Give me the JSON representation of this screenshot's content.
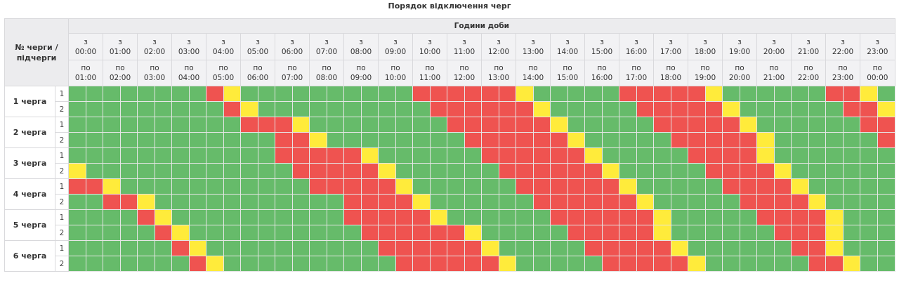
{
  "title": "Порядок відключення черг",
  "header": {
    "corner_label": "№ черги / підчерги",
    "hours_label": "Години доби",
    "from_prefix": "з",
    "to_prefix": "по",
    "slots": [
      {
        "from": "00:00",
        "to": "01:00"
      },
      {
        "from": "01:00",
        "to": "02:00"
      },
      {
        "from": "02:00",
        "to": "03:00"
      },
      {
        "from": "03:00",
        "to": "04:00"
      },
      {
        "from": "04:00",
        "to": "05:00"
      },
      {
        "from": "05:00",
        "to": "06:00"
      },
      {
        "from": "06:00",
        "to": "07:00"
      },
      {
        "from": "07:00",
        "to": "08:00"
      },
      {
        "from": "08:00",
        "to": "09:00"
      },
      {
        "from": "09:00",
        "to": "10:00"
      },
      {
        "from": "10:00",
        "to": "11:00"
      },
      {
        "from": "11:00",
        "to": "12:00"
      },
      {
        "from": "12:00",
        "to": "13:00"
      },
      {
        "from": "13:00",
        "to": "14:00"
      },
      {
        "from": "14:00",
        "to": "15:00"
      },
      {
        "from": "15:00",
        "to": "16:00"
      },
      {
        "from": "16:00",
        "to": "17:00"
      },
      {
        "from": "17:00",
        "to": "18:00"
      },
      {
        "from": "18:00",
        "to": "19:00"
      },
      {
        "from": "19:00",
        "to": "20:00"
      },
      {
        "from": "20:00",
        "to": "21:00"
      },
      {
        "from": "21:00",
        "to": "22:00"
      },
      {
        "from": "22:00",
        "to": "23:00"
      },
      {
        "from": "23:00",
        "to": "00:00"
      }
    ]
  },
  "legend_colors": {
    "G": "#66bb6a",
    "R": "#ef5350",
    "Y": "#ffeb3b"
  },
  "cell_semantics": {
    "G": "power-on",
    "R": "power-off",
    "Y": "possible-off"
  },
  "queues": [
    {
      "label": "1 черга",
      "subs": [
        {
          "label": "1",
          "cells": "GGGGGGGGRYGGGGGGGGGGRRRRRRYGGGGGRRRRRYGGGGGGRRYG"
        },
        {
          "label": "2",
          "cells": "GGGGGGGGGRYGGGGGGGGGGRRRRRRYGGGGGRRRRRYGGGGGGRRY"
        }
      ]
    },
    {
      "label": "2 черга",
      "subs": [
        {
          "label": "1",
          "cells": "GGGGGGGGGGRRRYGGGGGGGGRRRRRRYGGGGGRRRRRYGGGGGGRR"
        },
        {
          "label": "2",
          "cells": "GGGGGGGGGGGGRRYGGGGGGGGRRRRRRYGGGGGRRRRRYGGGGGGR"
        }
      ]
    },
    {
      "label": "3 черга",
      "subs": [
        {
          "label": "1",
          "cells": "GGGGGGGGGGGGRRRRRYGGGGGGRRRRRRYGGGGGRRRRYGGGGGGG"
        },
        {
          "label": "2",
          "cells": "YGGGGGGGGGGGGRRRRRYGGGGGGRRRRRRYGGGGGRRRRYGGGGGG"
        }
      ]
    },
    {
      "label": "4 черга",
      "subs": [
        {
          "label": "1",
          "cells": "RRYGGGGGGGGGGGRRRRRYGGGGGGRRRRRRYGGGGGRRRRYGGGGG"
        },
        {
          "label": "2",
          "cells": "GGRRYGGGGGGGGGGGRRRRYGGGGGGRRRRRRYGGGGGRRRRYGGGG"
        }
      ]
    },
    {
      "label": "5 черга",
      "subs": [
        {
          "label": "1",
          "cells": "GGGGRYGGGGGGGGGGRRRRRYGGGGGGRRRRRRYGGGGGRRRRYGGG"
        },
        {
          "label": "2",
          "cells": "GGGGGRYGGGGGGGGGGRRRRRRYGGGGGRRRRRYGGGGGGRRRYGGG"
        }
      ]
    },
    {
      "label": "6 черга",
      "subs": [
        {
          "label": "1",
          "cells": "GGGGGGRYGGGGGGGGGGRRRRRRYGGGGGRRRRRYGGGGGGRRYGGG"
        },
        {
          "label": "2",
          "cells": "GGGGGGGRYGGGGGGGGGGRRRRRRYGGGGGRRRRRYGGGGGGRRYGG"
        }
      ]
    }
  ]
}
